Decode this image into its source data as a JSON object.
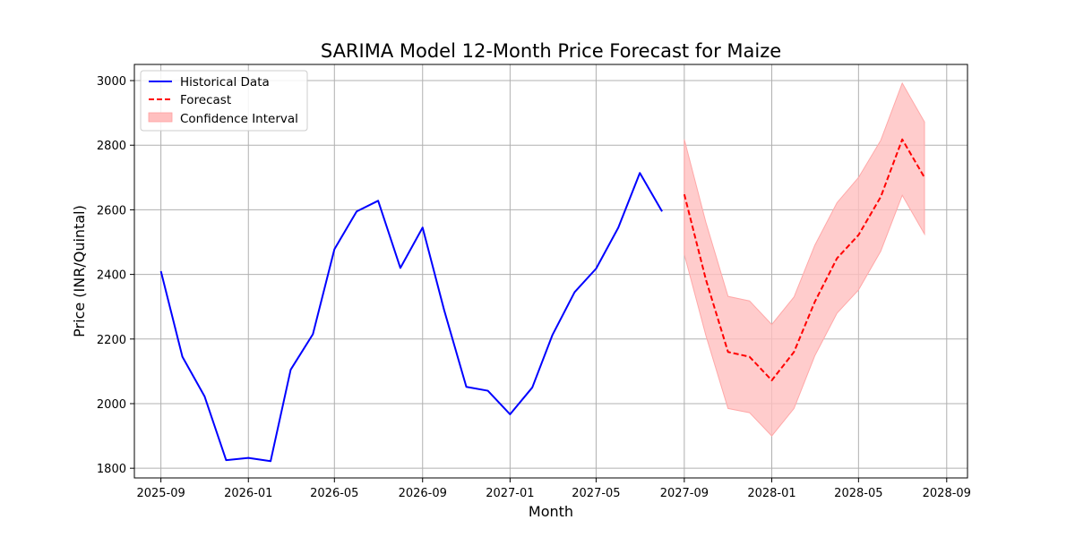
{
  "chart_data": {
    "type": "line",
    "title": "SARIMA Model 12-Month Price Forecast for Maize",
    "xlabel": "Month",
    "ylabel": "Price (INR/Quintal)",
    "ylim": [
      1770,
      3050
    ],
    "yticks": [
      1800,
      2000,
      2200,
      2400,
      2600,
      2800,
      3000
    ],
    "xlim": [
      "2025-07-26",
      "2028-09-30"
    ],
    "xticks": [
      "2025-09",
      "2026-01",
      "2026-05",
      "2026-09",
      "2027-01",
      "2027-05",
      "2027-09",
      "2028-01",
      "2028-05",
      "2028-09"
    ],
    "grid": true,
    "legend_position": "top-left",
    "legend": [
      "Historical Data",
      "Forecast",
      "Confidence Interval"
    ],
    "colors": {
      "historical": "#0000ff",
      "forecast": "#ff0000",
      "confidence": "#ffbfbf"
    },
    "historical": {
      "x": [
        "2025-09-01",
        "2025-10-01",
        "2025-11-01",
        "2025-12-01",
        "2026-01-01",
        "2026-02-01",
        "2026-03-01",
        "2026-04-01",
        "2026-05-01",
        "2026-06-01",
        "2026-07-01",
        "2026-08-01",
        "2026-09-01",
        "2026-10-01",
        "2026-11-01",
        "2026-12-01",
        "2027-01-01",
        "2027-02-01",
        "2027-03-01",
        "2027-04-01",
        "2027-05-01",
        "2027-06-01",
        "2027-07-01",
        "2027-08-01"
      ],
      "values": [
        2410,
        2145,
        2022,
        1825,
        1832,
        1822,
        2105,
        2215,
        2478,
        2595,
        2628,
        2420,
        2545,
        2290,
        2052,
        2040,
        1967,
        2050,
        2212,
        2345,
        2418,
        2545,
        2714,
        2595
      ]
    },
    "forecast": {
      "x": [
        "2027-09-01",
        "2027-10-01",
        "2027-11-01",
        "2027-12-01",
        "2028-01-01",
        "2028-02-01",
        "2028-03-01",
        "2028-04-01",
        "2028-05-01",
        "2028-06-01",
        "2028-07-01",
        "2028-08-01"
      ],
      "values": [
        2648,
        2385,
        2160,
        2145,
        2072,
        2160,
        2315,
        2450,
        2522,
        2640,
        2818,
        2700
      ],
      "lower": [
        2462,
        2212,
        1985,
        1972,
        1900,
        1985,
        2148,
        2280,
        2352,
        2472,
        2645,
        2525
      ],
      "upper": [
        2818,
        2562,
        2332,
        2318,
        2245,
        2330,
        2490,
        2622,
        2700,
        2815,
        2992,
        2872
      ]
    }
  }
}
